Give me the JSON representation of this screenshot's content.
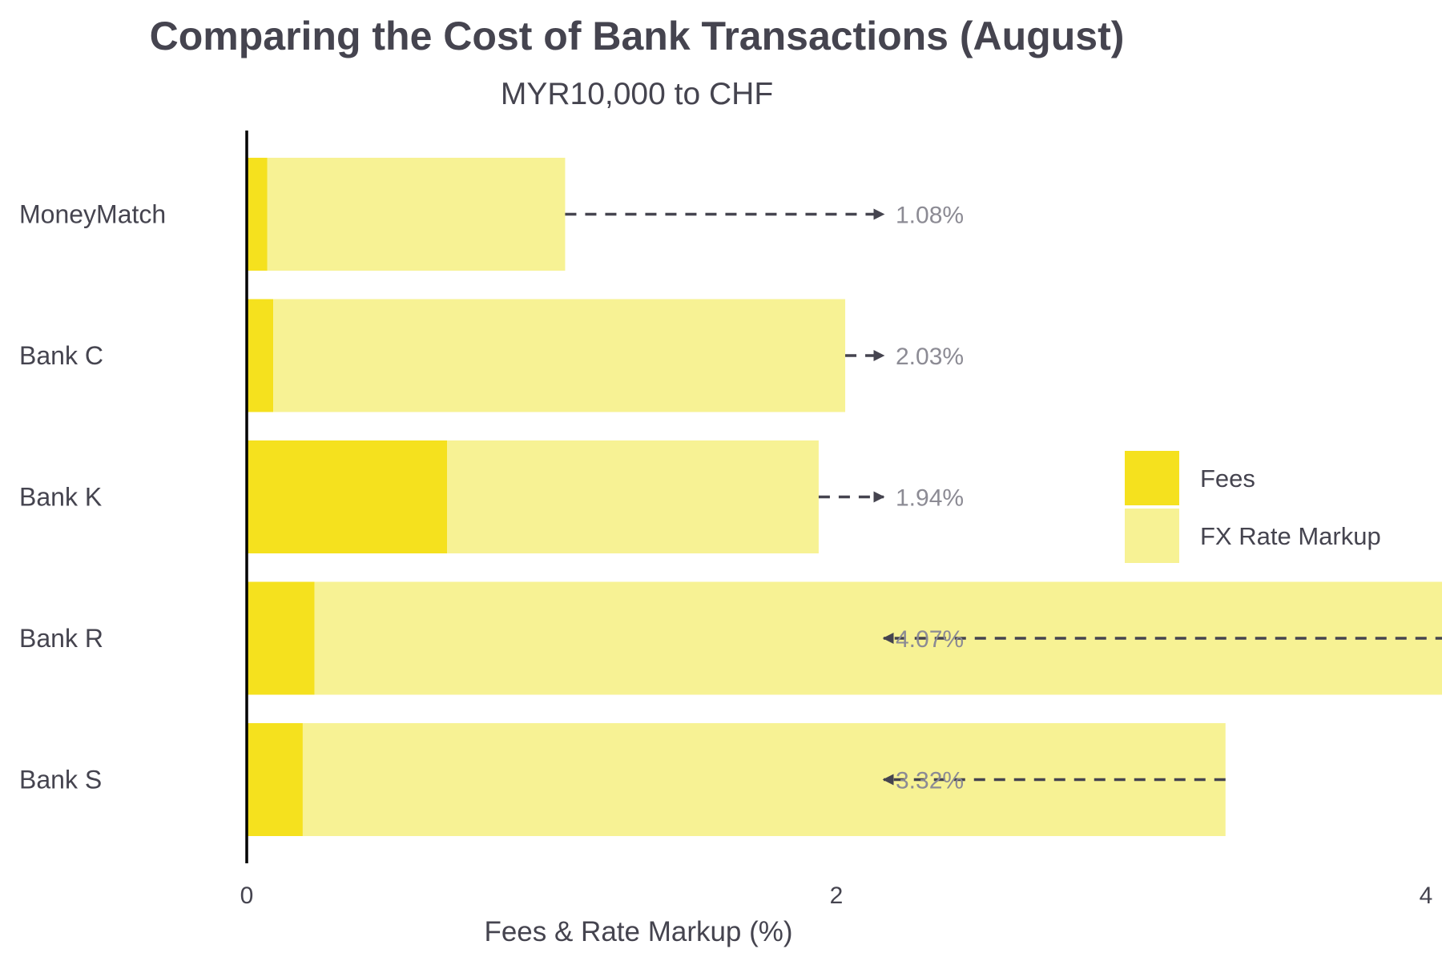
{
  "chart_data": {
    "type": "bar",
    "orientation": "horizontal",
    "stacked": true,
    "title": "Comparing the Cost of Bank Transactions (August)",
    "subtitle": "MYR10,000 to CHF",
    "xlabel": "Fees & Rate Markup (%)",
    "ylabel": "",
    "xlim": [
      0,
      4.4
    ],
    "x_ticks": [
      "0",
      "2",
      "4"
    ],
    "grid": false,
    "legend_position": "right",
    "categories": [
      "MoneyMatch",
      "Bank C",
      "Bank K",
      "Bank R",
      "Bank S"
    ],
    "series": [
      {
        "name": "Fees",
        "color": "#f5e11e",
        "values": [
          0.07,
          0.09,
          0.68,
          0.23,
          0.19
        ]
      },
      {
        "name": "FX Rate Markup",
        "color": "#f7f294",
        "values": [
          1.01,
          1.94,
          1.26,
          3.84,
          3.13
        ]
      }
    ],
    "totals": [
      "1.08%",
      "2.03%",
      "1.94%",
      "4.07%",
      "3.32%"
    ],
    "arrow_color": "#45444f"
  }
}
